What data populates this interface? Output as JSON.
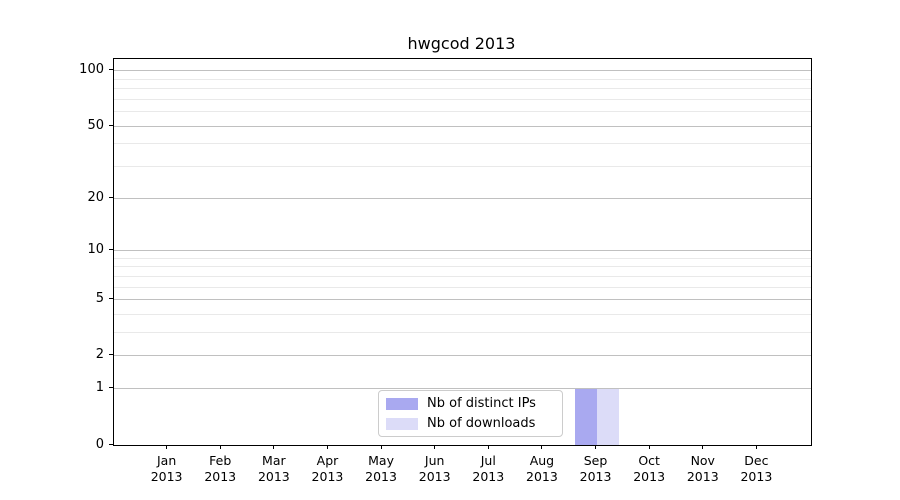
{
  "chart_data": {
    "type": "bar",
    "title": "hwgcod 2013",
    "categories": [
      "Jan",
      "Feb",
      "Mar",
      "Apr",
      "May",
      "Jun",
      "Jul",
      "Aug",
      "Sep",
      "Oct",
      "Nov",
      "Dec"
    ],
    "xtick_year": "2013",
    "series": [
      {
        "name": "Nb of distinct IPs",
        "color": "#a9a9f0",
        "values": [
          0,
          0,
          0,
          0,
          0,
          0,
          0,
          0,
          1,
          0,
          0,
          0
        ]
      },
      {
        "name": "Nb of downloads",
        "color": "#dcdcf8",
        "values": [
          0,
          0,
          0,
          0,
          0,
          0,
          0,
          0,
          1,
          0,
          0,
          0
        ]
      }
    ],
    "yscale": "log1p",
    "ylim_top": 116,
    "y_major_ticks": [
      0,
      1,
      2,
      5,
      10,
      20,
      50,
      100
    ],
    "y_major_tick_labels": [
      "0",
      "1",
      "2",
      "5",
      "10",
      "20",
      "50",
      "100"
    ],
    "y_minor_ticks": [
      3,
      4,
      6,
      7,
      8,
      9,
      30,
      40,
      60,
      70,
      80,
      90
    ],
    "grid": "horizontal",
    "legend_position": "lower center",
    "xlabel": "",
    "ylabel": ""
  },
  "colors": {
    "background": "#ffffff",
    "bar_distinct_ips": "#a9a9f0",
    "bar_downloads": "#dcdcf8",
    "grid_major": "#c0c0c0",
    "grid_minor": "#e9e9e9",
    "axis_frame": "#000000",
    "legend_border": "#cccccc",
    "text": "#000000"
  }
}
